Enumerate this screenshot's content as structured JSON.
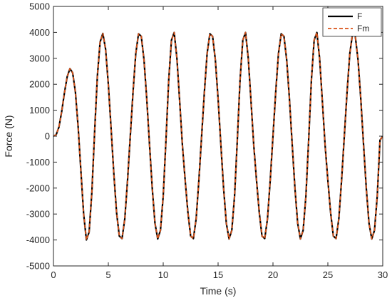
{
  "chart_data": {
    "type": "line",
    "title": "",
    "xlabel": "Time (s)",
    "ylabel": "Force (N)",
    "xlim": [
      0,
      30
    ],
    "ylim": [
      -5000,
      5000
    ],
    "xticks": [
      0,
      5,
      10,
      15,
      20,
      25,
      30
    ],
    "yticks": [
      -5000,
      -4000,
      -3000,
      -2000,
      -1000,
      0,
      1000,
      2000,
      3000,
      4000,
      5000
    ],
    "xtick_labels": [
      "0",
      "5",
      "10",
      "15",
      "20",
      "25",
      "30"
    ],
    "ytick_labels": [
      "-5000",
      "-4000",
      "-3000",
      "-2000",
      "-1000",
      "0",
      "1000",
      "2000",
      "3000",
      "4000",
      "5000"
    ],
    "grid": false,
    "legend": {
      "position": "top-right"
    },
    "series": [
      {
        "name": "F",
        "color": "#000000",
        "dash": "solid",
        "x": [
          0,
          0.25,
          0.5,
          0.75,
          1.0,
          1.25,
          1.5,
          1.75,
          2.0,
          2.25,
          2.5,
          2.75,
          3.0,
          3.25,
          3.5,
          3.75,
          4.0,
          4.25,
          4.5,
          4.75,
          5.0,
          5.25,
          5.5,
          5.75,
          6.0,
          6.25,
          6.5,
          6.75,
          7.0,
          7.25,
          7.5,
          7.75,
          8.0,
          8.25,
          8.5,
          8.75,
          9.0,
          9.25,
          9.5,
          9.75,
          10.0,
          10.25,
          10.5,
          10.75,
          11.0,
          11.25,
          11.5,
          11.75,
          12.0,
          12.25,
          12.5,
          12.75,
          13.0,
          13.25,
          13.5,
          13.75,
          14.0,
          14.25,
          14.5,
          14.75,
          15.0,
          15.25,
          15.5,
          15.75,
          16.0,
          16.25,
          16.5,
          16.75,
          17.0,
          17.25,
          17.5,
          17.75,
          18.0,
          18.25,
          18.5,
          18.75,
          19.0,
          19.25,
          19.5,
          19.75,
          20.0,
          20.25,
          20.5,
          20.75,
          21.0,
          21.25,
          21.5,
          21.75,
          22.0,
          22.25,
          22.5,
          22.75,
          23.0,
          23.25,
          23.5,
          23.75,
          24.0,
          24.25,
          24.5,
          24.75,
          25.0,
          25.25,
          25.5,
          25.75,
          26.0,
          26.25,
          26.5,
          26.75,
          27.0,
          27.25,
          27.5,
          27.75,
          28.0,
          28.25,
          28.5,
          28.75,
          29.0,
          29.25,
          29.5,
          29.75,
          30.0
        ],
        "y": [
          0,
          59,
          350,
          946,
          1666,
          2287,
          2602,
          2441,
          1699,
          356,
          -1341,
          -2993,
          -3997,
          -3697,
          -2154,
          155,
          2310,
          3627,
          3960,
          3356,
          2000,
          307,
          -1436,
          -2941,
          -3849,
          -3946,
          -3184,
          -1700,
          0,
          1700,
          3184,
          3946,
          3849,
          2941,
          1436,
          -307,
          -2000,
          -3356,
          -3960,
          -3627,
          -2310,
          -155,
          2154,
          3697,
          3997,
          2993,
          1341,
          -356,
          -1699,
          -2941,
          -3849,
          -3946,
          -3184,
          -1700,
          0,
          1700,
          3184,
          3946,
          3849,
          2941,
          1436,
          -307,
          -2000,
          -3356,
          -3960,
          -3627,
          -2310,
          -155,
          2154,
          3697,
          3997,
          2993,
          1341,
          -356,
          -1699,
          -2941,
          -3849,
          -3946,
          -3184,
          -1700,
          0,
          1700,
          3184,
          3946,
          3849,
          2941,
          1436,
          -307,
          -2000,
          -3356,
          -3960,
          -3627,
          -2310,
          -155,
          2154,
          3697,
          3997,
          2993,
          1341,
          -356,
          -1699,
          -2941,
          -3849,
          -3946,
          -3184,
          -1700,
          0,
          1700,
          3184,
          3946,
          3849,
          2941,
          1436,
          -307,
          -2000,
          -3356,
          -3960,
          -3627,
          -2310,
          -155,
          0
        ]
      },
      {
        "name": "Fm",
        "color": "#D95319",
        "dash": "dashed",
        "x": [
          0,
          0.25,
          0.5,
          0.75,
          1.0,
          1.25,
          1.5,
          1.75,
          2.0,
          2.25,
          2.5,
          2.75,
          3.0,
          3.25,
          3.5,
          3.75,
          4.0,
          4.25,
          4.5,
          4.75,
          5.0,
          5.25,
          5.5,
          5.75,
          6.0,
          6.25,
          6.5,
          6.75,
          7.0,
          7.25,
          7.5,
          7.75,
          8.0,
          8.25,
          8.5,
          8.75,
          9.0,
          9.25,
          9.5,
          9.75,
          10.0,
          10.25,
          10.5,
          10.75,
          11.0,
          11.25,
          11.5,
          11.75,
          12.0,
          12.25,
          12.5,
          12.75,
          13.0,
          13.25,
          13.5,
          13.75,
          14.0,
          14.25,
          14.5,
          14.75,
          15.0,
          15.25,
          15.5,
          15.75,
          16.0,
          16.25,
          16.5,
          16.75,
          17.0,
          17.25,
          17.5,
          17.75,
          18.0,
          18.25,
          18.5,
          18.75,
          19.0,
          19.25,
          19.5,
          19.75,
          20.0,
          20.25,
          20.5,
          20.75,
          21.0,
          21.25,
          21.5,
          21.75,
          22.0,
          22.25,
          22.5,
          22.75,
          23.0,
          23.25,
          23.5,
          23.75,
          24.0,
          24.25,
          24.5,
          24.75,
          25.0,
          25.25,
          25.5,
          25.75,
          26.0,
          26.25,
          26.5,
          26.75,
          27.0,
          27.25,
          27.5,
          27.75,
          28.0,
          28.25,
          28.5,
          28.75,
          29.0,
          29.25,
          29.5,
          29.75,
          30.0
        ],
        "y": [
          0,
          59,
          350,
          946,
          1666,
          2287,
          2602,
          2441,
          1699,
          356,
          -1341,
          -2993,
          -3997,
          -3697,
          -2154,
          155,
          2310,
          3627,
          3960,
          3356,
          2000,
          307,
          -1436,
          -2941,
          -3849,
          -3946,
          -3184,
          -1700,
          0,
          1700,
          3184,
          3946,
          3849,
          2941,
          1436,
          -307,
          -2000,
          -3356,
          -3960,
          -3627,
          -2310,
          -155,
          2154,
          3697,
          3997,
          2993,
          1341,
          -356,
          -1699,
          -2941,
          -3849,
          -3946,
          -3184,
          -1700,
          0,
          1700,
          3184,
          3946,
          3849,
          2941,
          1436,
          -307,
          -2000,
          -3356,
          -3960,
          -3627,
          -2310,
          -155,
          2154,
          3697,
          3997,
          2993,
          1341,
          -356,
          -1699,
          -2941,
          -3849,
          -3946,
          -3184,
          -1700,
          0,
          1700,
          3184,
          3946,
          3849,
          2941,
          1436,
          -307,
          -2000,
          -3356,
          -3960,
          -3627,
          -2310,
          -155,
          2154,
          3697,
          3997,
          2993,
          1341,
          -356,
          -1699,
          -2941,
          -3849,
          -3946,
          -3184,
          -1700,
          0,
          1700,
          3184,
          3946,
          3849,
          2941,
          1436,
          -307,
          -2000,
          -3356,
          -3960,
          -3627,
          -2310,
          -155,
          0
        ]
      }
    ]
  }
}
